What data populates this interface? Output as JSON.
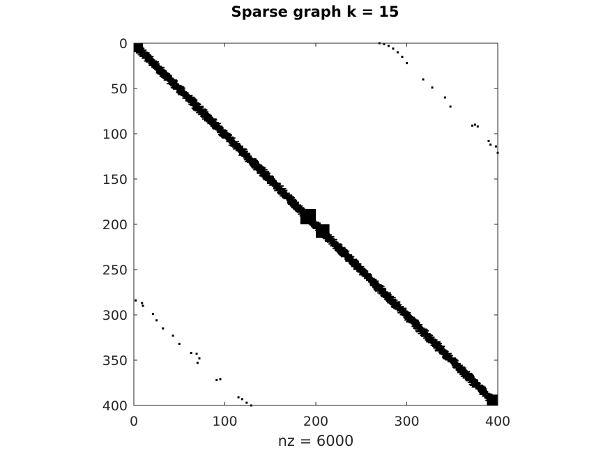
{
  "chart_data": {
    "type": "spy",
    "title": "Sparse graph k = 15",
    "xlabel": "nz = 6000",
    "ylabel": "",
    "xlim": [
      0,
      400
    ],
    "ylim": [
      0,
      400
    ],
    "y_reversed": true,
    "xticks": [
      0,
      100,
      200,
      300,
      400
    ],
    "yticks": [
      0,
      50,
      100,
      150,
      200,
      250,
      300,
      350,
      400
    ],
    "grid": false,
    "marker_color": "#000000",
    "structure": {
      "diagonal_band_halfwidth": 8,
      "dense_blocks": [
        {
          "rows": [
            183,
            200
          ],
          "cols": [
            183,
            200
          ]
        },
        {
          "rows": [
            200,
            215
          ],
          "cols": [
            200,
            215
          ]
        },
        {
          "rows": [
            0,
            10
          ],
          "cols": [
            0,
            10
          ]
        },
        {
          "rows": [
            388,
            400
          ],
          "cols": [
            388,
            400
          ]
        }
      ],
      "upper_corner_points": [
        [
          0,
          270
        ],
        [
          1,
          275
        ],
        [
          3,
          280
        ],
        [
          6,
          285
        ],
        [
          10,
          290
        ],
        [
          15,
          295
        ],
        [
          22,
          300
        ],
        [
          40,
          318
        ],
        [
          49,
          328
        ],
        [
          60,
          342
        ],
        [
          70,
          348
        ],
        [
          91,
          372
        ],
        [
          90,
          375
        ],
        [
          92,
          378
        ],
        [
          108,
          390
        ],
        [
          112,
          392
        ],
        [
          114,
          398
        ],
        [
          121,
          400
        ]
      ],
      "lower_corner_points": [
        [
          284,
          2
        ],
        [
          287,
          9
        ],
        [
          290,
          10
        ],
        [
          299,
          21
        ],
        [
          306,
          25
        ],
        [
          315,
          32
        ],
        [
          323,
          43
        ],
        [
          332,
          50
        ],
        [
          342,
          63
        ],
        [
          343,
          69
        ],
        [
          348,
          72
        ],
        [
          353,
          70
        ],
        [
          372,
          91
        ],
        [
          371,
          95
        ],
        [
          391,
          115
        ],
        [
          393,
          119
        ],
        [
          397,
          124
        ],
        [
          400,
          129
        ]
      ]
    }
  }
}
